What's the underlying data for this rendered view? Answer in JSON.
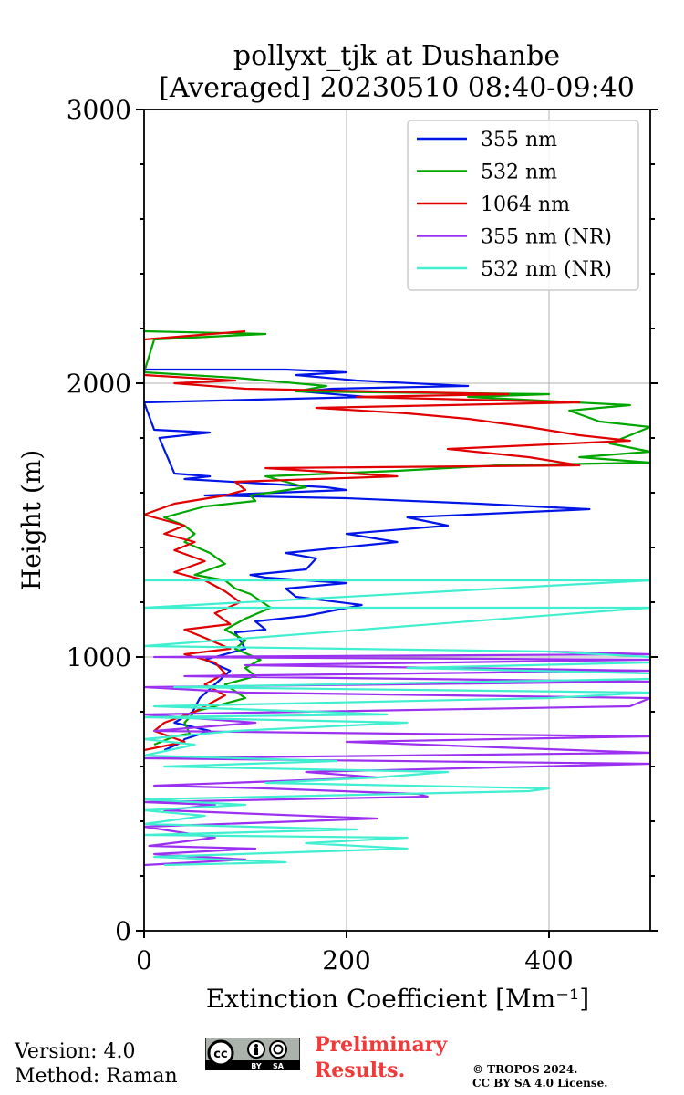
{
  "chart_data": {
    "type": "line",
    "title": "pollyxt_tjk at Dushanbe",
    "subtitle": "[Averaged] 20230510 08:40-09:40",
    "xlabel": "Extinction Coefficient [Mm⁻¹]",
    "ylabel": "Height (m)",
    "xlim": [
      0,
      500
    ],
    "ylim": [
      0,
      3000
    ],
    "xticks": [
      0,
      200,
      400
    ],
    "yticks": [
      0,
      1000,
      2000,
      3000
    ],
    "grid": true,
    "legend_position": "top-right",
    "series": [
      {
        "name": "355 nm",
        "color": "#0015e6",
        "points": [
          [
            20,
            660
          ],
          [
            38,
            690
          ],
          [
            40,
            700
          ],
          [
            65,
            730
          ],
          [
            30,
            760
          ],
          [
            48,
            800
          ],
          [
            55,
            850
          ],
          [
            70,
            900
          ],
          [
            85,
            950
          ],
          [
            60,
            990
          ],
          [
            100,
            1030
          ],
          [
            95,
            1060
          ],
          [
            90,
            1090
          ],
          [
            120,
            1100
          ],
          [
            110,
            1130
          ],
          [
            160,
            1150
          ],
          [
            215,
            1190
          ],
          [
            150,
            1220
          ],
          [
            140,
            1250
          ],
          [
            200,
            1270
          ],
          [
            120,
            1290
          ],
          [
            105,
            1300
          ],
          [
            160,
            1320
          ],
          [
            170,
            1360
          ],
          [
            140,
            1380
          ],
          [
            250,
            1420
          ],
          [
            200,
            1450
          ],
          [
            300,
            1480
          ],
          [
            260,
            1510
          ],
          [
            440,
            1540
          ],
          [
            330,
            1560
          ],
          [
            200,
            1580
          ],
          [
            60,
            1590
          ],
          [
            200,
            1610
          ],
          [
            180,
            1620
          ],
          [
            40,
            1650
          ],
          [
            65,
            1660
          ],
          [
            30,
            1670
          ],
          [
            15,
            1800
          ],
          [
            65,
            1820
          ],
          [
            10,
            1830
          ],
          [
            0,
            1930
          ],
          [
            220,
            1950
          ],
          [
            155,
            1970
          ],
          [
            185,
            1980
          ],
          [
            320,
            1990
          ],
          [
            210,
            2010
          ],
          [
            150,
            2030
          ],
          [
            200,
            2040
          ],
          [
            140,
            2050
          ],
          [
            0,
            2050
          ]
        ]
      },
      {
        "name": "532 nm",
        "color": "#00a600",
        "points": [
          [
            10,
            680
          ],
          [
            30,
            710
          ],
          [
            45,
            720
          ],
          [
            40,
            760
          ],
          [
            50,
            800
          ],
          [
            100,
            850
          ],
          [
            80,
            900
          ],
          [
            110,
            930
          ],
          [
            100,
            960
          ],
          [
            115,
            990
          ],
          [
            90,
            1030
          ],
          [
            100,
            1060
          ],
          [
            80,
            1100
          ],
          [
            100,
            1140
          ],
          [
            125,
            1180
          ],
          [
            105,
            1230
          ],
          [
            90,
            1250
          ],
          [
            80,
            1280
          ],
          [
            50,
            1300
          ],
          [
            80,
            1340
          ],
          [
            65,
            1380
          ],
          [
            40,
            1420
          ],
          [
            50,
            1450
          ],
          [
            40,
            1480
          ],
          [
            20,
            1510
          ],
          [
            60,
            1550
          ],
          [
            110,
            1570
          ],
          [
            105,
            1590
          ],
          [
            160,
            1620
          ],
          [
            120,
            1660
          ],
          [
            250,
            1680
          ],
          [
            350,
            1700
          ],
          [
            500,
            1710
          ],
          [
            430,
            1730
          ],
          [
            500,
            1750
          ],
          [
            460,
            1780
          ],
          [
            480,
            1810
          ],
          [
            500,
            1840
          ],
          [
            450,
            1860
          ],
          [
            420,
            1900
          ],
          [
            480,
            1920
          ],
          [
            320,
            1950
          ],
          [
            400,
            1960
          ],
          [
            150,
            1970
          ],
          [
            180,
            1990
          ],
          [
            90,
            2020
          ],
          [
            0,
            2040
          ],
          [
            10,
            2160
          ],
          [
            120,
            2180
          ],
          [
            0,
            2190
          ]
        ]
      },
      {
        "name": "1064 nm",
        "color": "#e00000",
        "points": [
          [
            0,
            660
          ],
          [
            40,
            690
          ],
          [
            10,
            730
          ],
          [
            20,
            760
          ],
          [
            50,
            800
          ],
          [
            80,
            860
          ],
          [
            60,
            900
          ],
          [
            80,
            940
          ],
          [
            70,
            980
          ],
          [
            40,
            1010
          ],
          [
            85,
            1030
          ],
          [
            60,
            1070
          ],
          [
            40,
            1100
          ],
          [
            85,
            1120
          ],
          [
            70,
            1160
          ],
          [
            95,
            1200
          ],
          [
            80,
            1240
          ],
          [
            60,
            1280
          ],
          [
            30,
            1310
          ],
          [
            60,
            1350
          ],
          [
            30,
            1390
          ],
          [
            50,
            1420
          ],
          [
            20,
            1450
          ],
          [
            40,
            1480
          ],
          [
            0,
            1520
          ],
          [
            30,
            1560
          ],
          [
            80,
            1590
          ],
          [
            100,
            1610
          ],
          [
            90,
            1640
          ],
          [
            250,
            1660
          ],
          [
            120,
            1690
          ],
          [
            430,
            1700
          ],
          [
            380,
            1730
          ],
          [
            300,
            1760
          ],
          [
            480,
            1790
          ],
          [
            430,
            1810
          ],
          [
            380,
            1840
          ],
          [
            320,
            1870
          ],
          [
            260,
            1890
          ],
          [
            170,
            1910
          ],
          [
            430,
            1930
          ],
          [
            210,
            1950
          ],
          [
            360,
            1960
          ],
          [
            100,
            1980
          ],
          [
            30,
            2000
          ],
          [
            90,
            2010
          ],
          [
            0,
            2030
          ],
          [
            0,
            2160
          ],
          [
            100,
            2190
          ]
        ]
      },
      {
        "name": "355 nm (NR)",
        "color": "#9b30f0",
        "points": [
          [
            0,
            240
          ],
          [
            100,
            260
          ],
          [
            10,
            280
          ],
          [
            110,
            300
          ],
          [
            5,
            310
          ],
          [
            70,
            340
          ],
          [
            0,
            380
          ],
          [
            230,
            410
          ],
          [
            20,
            440
          ],
          [
            70,
            460
          ],
          [
            0,
            470
          ],
          [
            280,
            490
          ],
          [
            270,
            500
          ],
          [
            120,
            520
          ],
          [
            10,
            530
          ],
          [
            230,
            560
          ],
          [
            160,
            580
          ],
          [
            500,
            610
          ],
          [
            0,
            630
          ],
          [
            500,
            650
          ],
          [
            200,
            690
          ],
          [
            500,
            710
          ],
          [
            10,
            730
          ],
          [
            110,
            760
          ],
          [
            0,
            790
          ],
          [
            480,
            820
          ],
          [
            500,
            850
          ],
          [
            100,
            870
          ],
          [
            0,
            890
          ],
          [
            500,
            910
          ],
          [
            40,
            930
          ],
          [
            500,
            950
          ],
          [
            100,
            970
          ],
          [
            500,
            990
          ],
          [
            10,
            1000
          ],
          [
            500,
            1010
          ],
          [
            400,
            1020
          ]
        ]
      },
      {
        "name": "532 nm (NR)",
        "color": "#40eed0",
        "points": [
          [
            20,
            240
          ],
          [
            140,
            250
          ],
          [
            10,
            270
          ],
          [
            260,
            300
          ],
          [
            160,
            320
          ],
          [
            260,
            340
          ],
          [
            0,
            350
          ],
          [
            210,
            370
          ],
          [
            0,
            390
          ],
          [
            60,
            420
          ],
          [
            0,
            440
          ],
          [
            100,
            460
          ],
          [
            0,
            480
          ],
          [
            380,
            510
          ],
          [
            400,
            520
          ],
          [
            120,
            540
          ],
          [
            230,
            560
          ],
          [
            300,
            580
          ],
          [
            20,
            600
          ],
          [
            190,
            620
          ],
          [
            0,
            640
          ],
          [
            50,
            680
          ],
          [
            0,
            700
          ],
          [
            90,
            730
          ],
          [
            260,
            760
          ],
          [
            0,
            780
          ],
          [
            240,
            790
          ],
          [
            170,
            800
          ],
          [
            10,
            820
          ],
          [
            400,
            850
          ],
          [
            500,
            870
          ],
          [
            30,
            890
          ],
          [
            500,
            920
          ],
          [
            500,
            940
          ],
          [
            260,
            960
          ],
          [
            500,
            980
          ],
          [
            500,
            1000
          ],
          [
            400,
            1020
          ],
          [
            0,
            1040
          ],
          [
            500,
            1180
          ],
          [
            0,
            1180
          ],
          [
            500,
            1280
          ],
          [
            0,
            1280
          ]
        ]
      }
    ]
  },
  "footer": {
    "version": "Version: 4.0",
    "method": "Method: Raman",
    "license_badge": [
      "cc",
      "BY",
      "SA"
    ],
    "preliminary_line1": "Preliminary",
    "preliminary_line2": "Results.",
    "copyright_line1": "© TROPOS 2024.",
    "copyright_line2": "CC BY SA 4.0 License."
  }
}
